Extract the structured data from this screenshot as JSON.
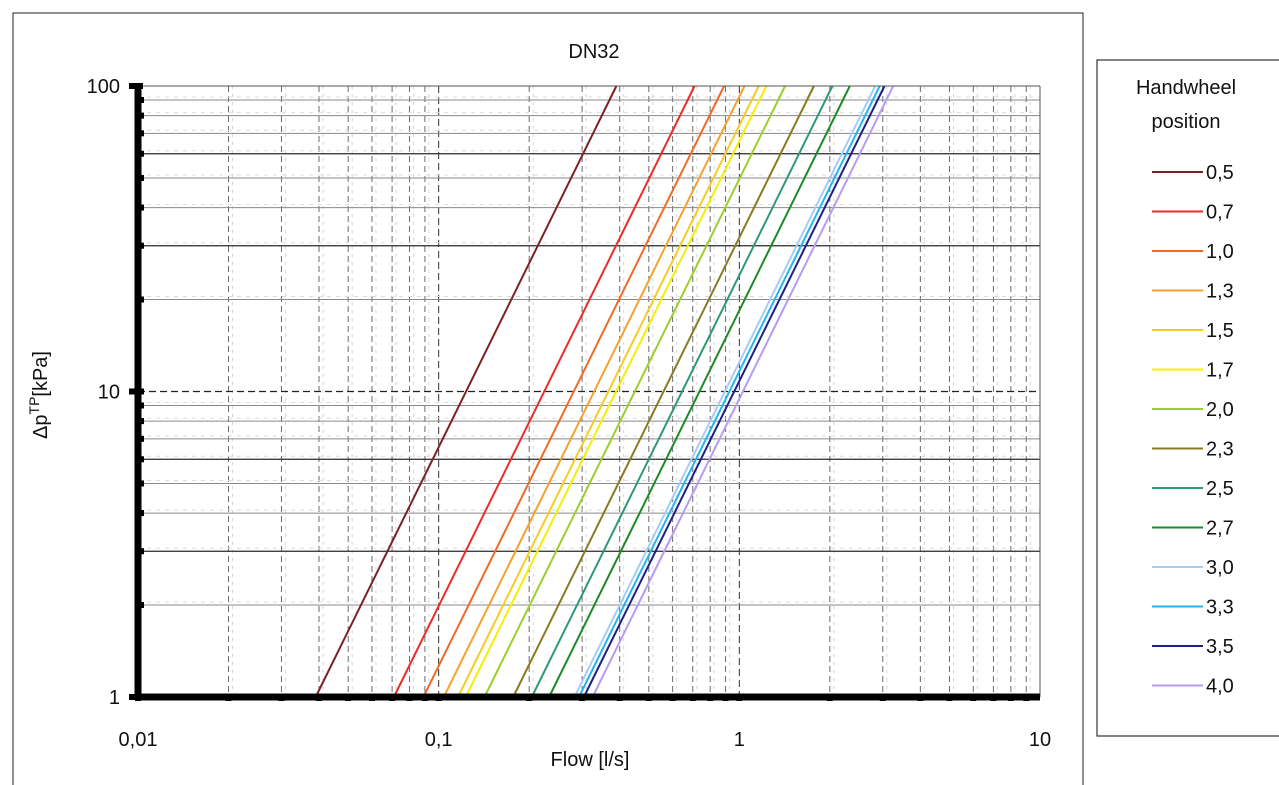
{
  "chart_data": {
    "type": "line",
    "title": "DN32",
    "xlabel": "Flow [l/s]",
    "ylabel": {
      "base": "Δp",
      "sup": "TP",
      "rest": "[kPa]"
    },
    "x_scale": "log",
    "y_scale": "log",
    "xlim": [
      0.01,
      10
    ],
    "ylim": [
      1,
      100
    ],
    "x_ticks": [
      {
        "value": 0.01,
        "label": "0,01"
      },
      {
        "value": 0.1,
        "label": "0,1"
      },
      {
        "value": 1,
        "label": "1"
      },
      {
        "value": 10,
        "label": "10"
      }
    ],
    "y_ticks": [
      {
        "value": 1,
        "label": "1"
      },
      {
        "value": 10,
        "label": "10"
      },
      {
        "value": 100,
        "label": "100"
      }
    ],
    "grid": true,
    "legend": {
      "title_lines": [
        "Handwheel",
        "position"
      ],
      "placement": "right"
    },
    "series": [
      {
        "name": "0,5",
        "color": "#7b2323",
        "x": [
          0.039,
          0.39
        ],
        "y": [
          1,
          100
        ]
      },
      {
        "name": "0,7",
        "color": "#ee2a2a",
        "x": [
          0.071,
          0.71
        ],
        "y": [
          1,
          100
        ]
      },
      {
        "name": "1,0",
        "color": "#f06a2a",
        "x": [
          0.089,
          0.89
        ],
        "y": [
          1,
          100
        ]
      },
      {
        "name": "1,3",
        "color": "#f5a22e",
        "x": [
          0.104,
          1.04
        ],
        "y": [
          1,
          100
        ]
      },
      {
        "name": "1,5",
        "color": "#f7cb24",
        "x": [
          0.116,
          1.16
        ],
        "y": [
          1,
          100
        ]
      },
      {
        "name": "1,7",
        "color": "#f3f000",
        "x": [
          0.123,
          1.23
        ],
        "y": [
          1,
          100
        ]
      },
      {
        "name": "2,0",
        "color": "#9ccf2a",
        "x": [
          0.142,
          1.42
        ],
        "y": [
          1,
          100
        ]
      },
      {
        "name": "2,3",
        "color": "#8a7a23",
        "x": [
          0.177,
          1.77
        ],
        "y": [
          1,
          100
        ]
      },
      {
        "name": "2,5",
        "color": "#2f9a6e",
        "x": [
          0.204,
          2.04
        ],
        "y": [
          1,
          100
        ]
      },
      {
        "name": "2,7",
        "color": "#1d8a2a",
        "x": [
          0.233,
          2.33
        ],
        "y": [
          1,
          100
        ]
      },
      {
        "name": "3,0",
        "color": "#a7cdf2",
        "x": [
          0.283,
          2.83
        ],
        "y": [
          1,
          100
        ]
      },
      {
        "name": "3,3",
        "color": "#25b5ec",
        "x": [
          0.293,
          2.93
        ],
        "y": [
          1,
          100
        ]
      },
      {
        "name": "3,5",
        "color": "#1d1f8a",
        "x": [
          0.304,
          3.04
        ],
        "y": [
          1,
          100
        ]
      },
      {
        "name": "4,0",
        "color": "#b69cf2",
        "x": [
          0.325,
          3.25
        ],
        "y": [
          1,
          100
        ]
      }
    ]
  }
}
